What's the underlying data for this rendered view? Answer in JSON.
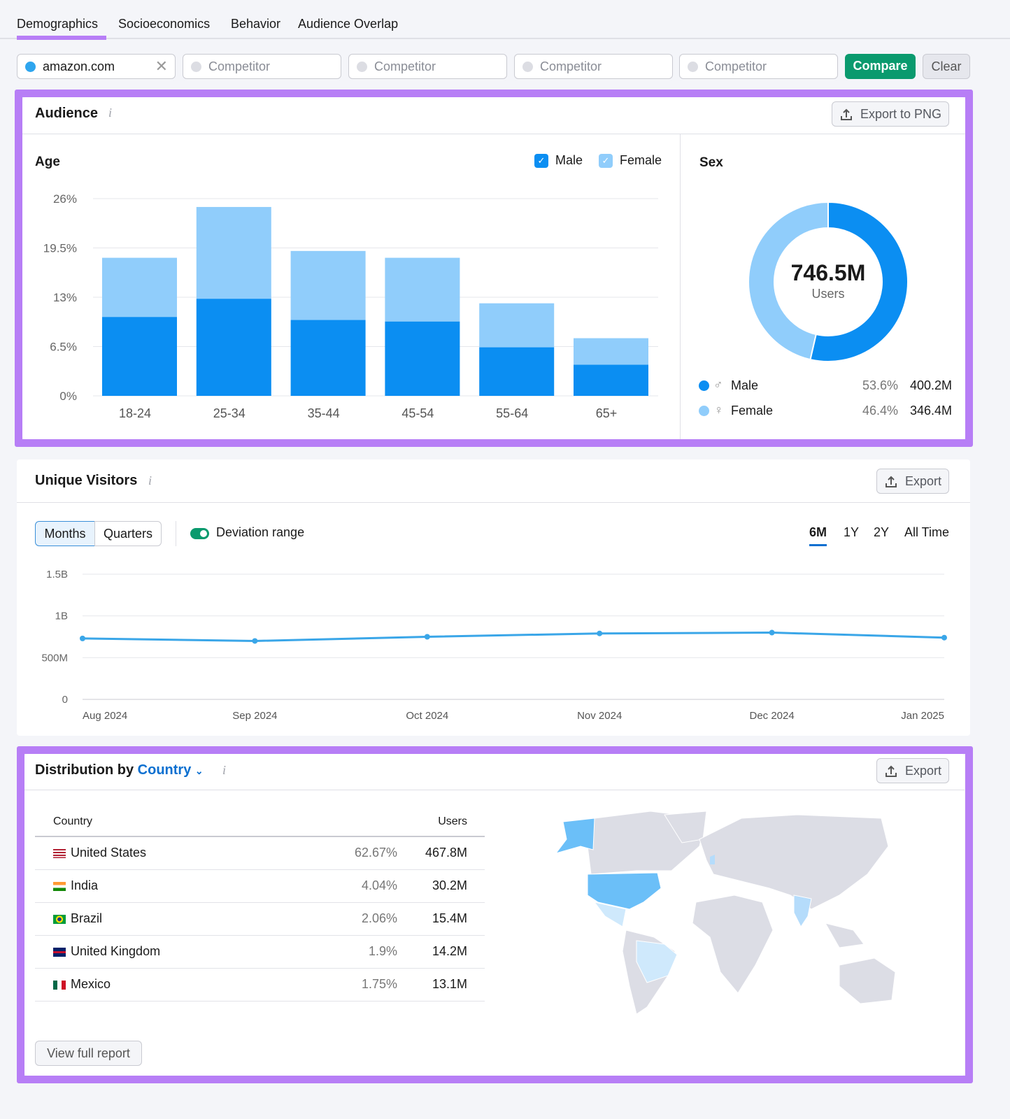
{
  "tabs": [
    "Demographics",
    "Socioeconomics",
    "Behavior",
    "Audience Overlap"
  ],
  "active_tab": "Demographics",
  "domains": {
    "primary": "amazon.com",
    "competitor_placeholder": "Competitor",
    "compare": "Compare",
    "clear": "Clear"
  },
  "colors": {
    "male": "#0b8ef2",
    "female": "#90cdfb",
    "accent": "#b77ef6",
    "compare": "#0a9a6e",
    "link": "#0b6fd0",
    "line": "#3aa6e8"
  },
  "audience": {
    "title": "Audience",
    "export": "Export to PNG",
    "age": {
      "title": "Age",
      "legend": {
        "male": "Male",
        "female": "Female"
      }
    },
    "sex": {
      "title": "Sex",
      "total": "746.5M",
      "total_label": "Users",
      "male": {
        "label": "Male",
        "pct": "53.6%",
        "value": "400.2M"
      },
      "female": {
        "label": "Female",
        "pct": "46.4%",
        "value": "346.4M"
      }
    }
  },
  "unique_visitors": {
    "title": "Unique Visitors",
    "export": "Export",
    "granularity": [
      "Months",
      "Quarters"
    ],
    "active_granularity": "Months",
    "deviation": "Deviation range",
    "deviation_on": true,
    "ranges": [
      "6M",
      "1Y",
      "2Y",
      "All Time"
    ],
    "active_range": "6M"
  },
  "distribution": {
    "title": "Distribution by",
    "dimension": "Country",
    "export": "Export",
    "columns": [
      "Country",
      "Users"
    ],
    "rows": [
      {
        "country": "United States",
        "pct": "62.67%",
        "users": "467.8M"
      },
      {
        "country": "India",
        "pct": "4.04%",
        "users": "30.2M"
      },
      {
        "country": "Brazil",
        "pct": "2.06%",
        "users": "15.4M"
      },
      {
        "country": "United Kingdom",
        "pct": "1.9%",
        "users": "14.2M"
      },
      {
        "country": "Mexico",
        "pct": "1.75%",
        "users": "13.1M"
      }
    ],
    "view_full": "View full report"
  },
  "chart_data": [
    {
      "type": "bar",
      "stacked": true,
      "title": "Age",
      "categories": [
        "18-24",
        "25-34",
        "35-44",
        "45-54",
        "55-64",
        "65+"
      ],
      "series": [
        {
          "name": "Male",
          "values": [
            10.4,
            12.8,
            10.0,
            9.8,
            6.4,
            4.1
          ]
        },
        {
          "name": "Female",
          "values": [
            7.8,
            12.1,
            9.1,
            8.4,
            5.8,
            3.5
          ]
        }
      ],
      "ylim": [
        0,
        26
      ],
      "yticks": [
        "0%",
        "6.5%",
        "13%",
        "19.5%",
        "26%"
      ],
      "grid": true,
      "legend": "top-right"
    },
    {
      "type": "pie",
      "donut": true,
      "title": "Sex",
      "labels": [
        "Male",
        "Female"
      ],
      "values": [
        53.6,
        46.4
      ]
    },
    {
      "type": "line",
      "x": [
        "Aug 2024",
        "Sep 2024",
        "Oct 2024",
        "Nov 2024",
        "Dec 2024",
        "Jan 2025"
      ],
      "values": [
        0.73,
        0.7,
        0.75,
        0.79,
        0.8,
        0.74
      ],
      "unit": "B",
      "ylim": [
        0,
        1.5
      ],
      "yticks": [
        "0",
        "500M",
        "1B",
        "1.5B"
      ],
      "grid": true
    }
  ]
}
